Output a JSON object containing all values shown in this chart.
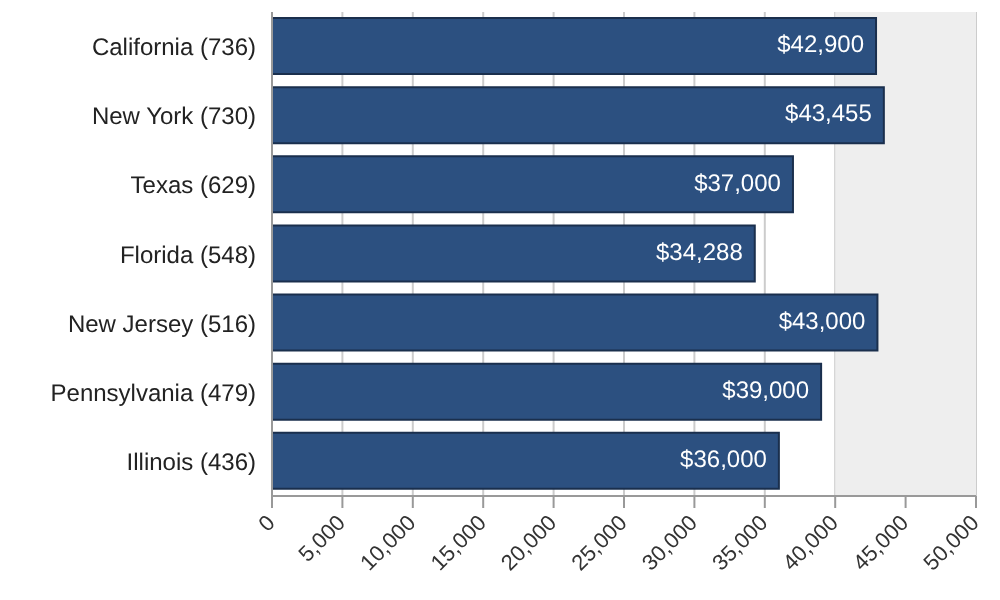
{
  "chart_data": {
    "type": "bar",
    "orientation": "horizontal",
    "categories": [
      "California (736)",
      "New York (730)",
      "Texas (629)",
      "Florida (548)",
      "New Jersey (516)",
      "Pennsylvania (479)",
      "Illinois (436)"
    ],
    "values": [
      42900,
      43455,
      37000,
      34288,
      43000,
      39000,
      36000
    ],
    "value_labels": [
      "$42,900",
      "$43,455",
      "$37,000",
      "$34,288",
      "$43,000",
      "$39,000",
      "$36,000"
    ],
    "color": "#2c5080",
    "xlim": [
      0,
      50000
    ],
    "xticks": [
      0,
      {
        "value": 5000,
        "label": "5,000"
      },
      {
        "value": 10000,
        "label": "10,000"
      },
      {
        "value": 15000,
        "label": "15,000"
      },
      {
        "value": 20000,
        "label": "20,000"
      },
      {
        "value": 25000,
        "label": "25,000"
      },
      {
        "value": 30000,
        "label": "30,000"
      },
      {
        "value": 35000,
        "label": "35,000"
      },
      {
        "value": 40000,
        "label": "40,000"
      },
      {
        "value": 45000,
        "label": "45,000"
      },
      {
        "value": 50000,
        "label": "50,000"
      }
    ],
    "bands": [
      {
        "axis": "x",
        "from": 40000,
        "to": 50000,
        "color": "#eeeeee"
      }
    ],
    "grid": "x"
  }
}
